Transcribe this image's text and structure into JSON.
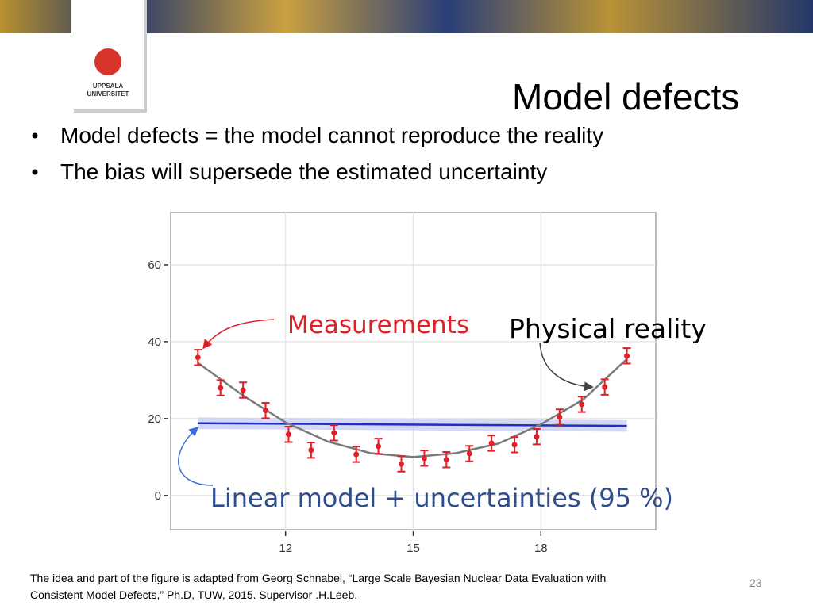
{
  "logo": {
    "line1": "UPPSALA",
    "line2": "UNIVERSITET"
  },
  "title": "Model defects",
  "bullets": [
    "Model defects = the model cannot reproduce the reality",
    "The bias will supersede the estimated uncertainty"
  ],
  "footnote": [
    "The idea and part of the figure is adapted from Georg Schnabel, “Large Scale Bayesian Nuclear Data Evaluation with",
    "Consistent Model Defects,” Ph.D, TUW, 2015. Supervisor .H.Leeb."
  ],
  "page_number": "23",
  "chart_data": {
    "type": "scatter",
    "xlim": [
      9.3,
      20.7
    ],
    "xticks": [
      12,
      15,
      18
    ],
    "ylim": [
      -8.9,
      73.6
    ],
    "yticks": [
      0,
      20,
      40,
      60
    ],
    "grid": true,
    "measurements": {
      "color": "#e01f26",
      "x": [
        9.94,
        10.47,
        11.0,
        11.53,
        12.07,
        12.6,
        13.14,
        13.66,
        14.18,
        14.72,
        15.26,
        15.78,
        16.32,
        16.84,
        17.38,
        17.9,
        18.44,
        18.96,
        19.5,
        20.02
      ],
      "values": [
        35.9,
        28.0,
        27.4,
        22.1,
        15.9,
        11.8,
        16.3,
        10.7,
        12.8,
        8.2,
        9.7,
        9.3,
        10.9,
        13.6,
        13.2,
        15.3,
        20.4,
        23.7,
        28.2,
        36.3
      ],
      "errors": [
        2,
        2,
        2,
        2,
        2,
        2,
        2,
        2,
        2,
        2,
        2,
        2,
        2,
        2,
        2,
        2,
        2,
        2,
        2,
        2
      ]
    },
    "reality": {
      "color": "#7a7a7a",
      "x": [
        9.94,
        11,
        12,
        13,
        14,
        15,
        16,
        17,
        18,
        19,
        20.02
      ],
      "values": [
        34.5,
        26,
        19,
        14,
        11,
        10,
        11,
        13.5,
        18.5,
        25,
        35.5
      ]
    },
    "linear_model": {
      "color": "#1f2fbf",
      "band_color": "#c9cdf2",
      "x": [
        9.94,
        20.02
      ],
      "values": [
        18.8,
        18.1
      ],
      "band": 1.5
    },
    "annotations": [
      {
        "text": "Measurements",
        "color": "#e01f26"
      },
      {
        "text": "Physical reality",
        "color": "#000000"
      },
      {
        "text": "Linear model + uncertainties (95 %)",
        "color": "#2e4d8a"
      }
    ]
  }
}
